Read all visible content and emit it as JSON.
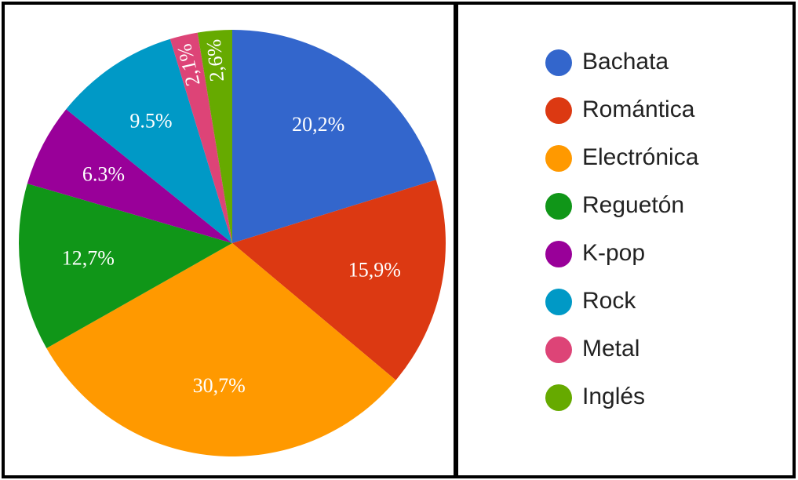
{
  "chart_data": {
    "type": "pie",
    "categories": [
      "Bachata",
      "Romántica",
      "Electrónica",
      "Reguetón",
      "K-pop",
      "Rock",
      "Metal",
      "Inglés"
    ],
    "values": [
      20.2,
      15.9,
      30.7,
      12.7,
      6.3,
      9.5,
      2.1,
      2.6
    ],
    "value_labels": [
      "20,2%",
      "15,9%",
      "30,7%",
      "12,7%",
      "6.3%",
      "9.5%",
      "2,1%",
      "2,6%"
    ],
    "colors": [
      "#3366cc",
      "#dc3912",
      "#ff9900",
      "#109618",
      "#990099",
      "#0099c6",
      "#dd4477",
      "#66aa00"
    ],
    "legend": "right"
  }
}
